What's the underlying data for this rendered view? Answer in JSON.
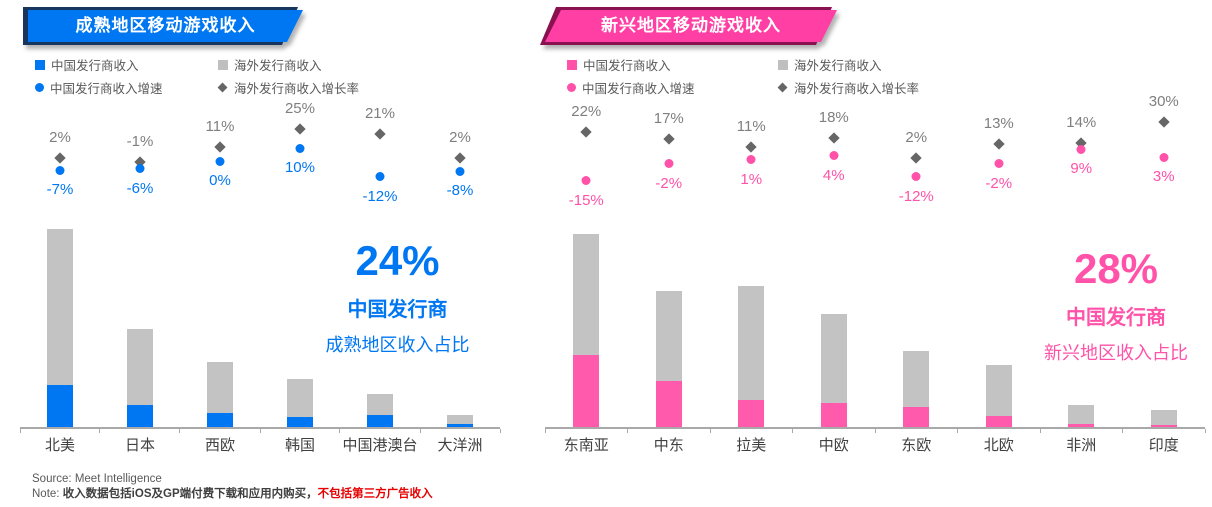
{
  "chart_data": [
    {
      "type": "bar",
      "subtype": "stacked-bar-with-growth-scatter",
      "title": "成熟地区移动游戏收入",
      "categories": [
        "北美",
        "日本",
        "西欧",
        "韩国",
        "中国港澳台",
        "大洋洲"
      ],
      "series": [
        {
          "name": "中国发行商收入",
          "role": "bar-bottom",
          "unit": "relative-height",
          "values": [
            42,
            22,
            14,
            10,
            12,
            3
          ]
        },
        {
          "name": "海外发行商收入",
          "role": "bar-top",
          "unit": "relative-height",
          "values": [
            156,
            76,
            51,
            38,
            21,
            9
          ]
        },
        {
          "name": "中国发行商收入增速",
          "role": "scatter-dot",
          "unit": "%",
          "values": [
            -7,
            -6,
            0,
            10,
            -12,
            -8
          ]
        },
        {
          "name": "海外发行商收入增长率",
          "role": "scatter-diamond",
          "unit": "%",
          "values": [
            2,
            -1,
            11,
            25,
            21,
            2
          ]
        }
      ],
      "legend": [
        {
          "marker": "square",
          "label": "中国发行商收入"
        },
        {
          "marker": "square",
          "label": "海外发行商收入"
        },
        {
          "marker": "dot",
          "label": "中国发行商收入增速"
        },
        {
          "marker": "diamond",
          "label": "海外发行商收入增长率"
        }
      ],
      "callout": {
        "value": "24%",
        "line1": "中国发行商",
        "line2": "成熟地区收入占比"
      },
      "colors": {
        "accent": "#0077F2",
        "banner": "#0077F2",
        "banner_shadow": "#17365D",
        "china_bar": "#0077F2",
        "overseas_bar": "#C3C3C4",
        "diamond": "#666666",
        "gray_label": "#7F7F7F"
      },
      "layout_hints": {
        "grid": false,
        "value_axis_hidden": true,
        "legend_position": "top-left"
      }
    },
    {
      "type": "bar",
      "subtype": "stacked-bar-with-growth-scatter",
      "title": "新兴地区移动游戏收入",
      "categories": [
        "东南亚",
        "中东",
        "拉美",
        "中欧",
        "东欧",
        "北欧",
        "非洲",
        "印度"
      ],
      "series": [
        {
          "name": "中国发行商收入",
          "role": "bar-bottom",
          "unit": "relative-height",
          "values": [
            72,
            46,
            27,
            24,
            20,
            11,
            3,
            2
          ]
        },
        {
          "name": "海外发行商收入",
          "role": "bar-top",
          "unit": "relative-height",
          "values": [
            121,
            90,
            114,
            89,
            56,
            51,
            19,
            15
          ]
        },
        {
          "name": "中国发行商收入增速",
          "role": "scatter-dot",
          "unit": "%",
          "values": [
            -15,
            -2,
            1,
            4,
            -12,
            -2,
            9,
            3
          ]
        },
        {
          "name": "海外发行商收入增长率",
          "role": "scatter-diamond",
          "unit": "%",
          "values": [
            22,
            17,
            11,
            18,
            2,
            13,
            14,
            30
          ]
        }
      ],
      "legend": [
        {
          "marker": "square",
          "label": "中国发行商收入"
        },
        {
          "marker": "square",
          "label": "海外发行商收入"
        },
        {
          "marker": "dot",
          "label": "中国发行商收入增速"
        },
        {
          "marker": "diamond",
          "label": "海外发行商收入增长率"
        }
      ],
      "callout": {
        "value": "28%",
        "line1": "中国发行商",
        "line2": "新兴地区收入占比"
      },
      "colors": {
        "accent": "#FF52A8",
        "banner": "#FF3FA4",
        "banner_shadow": "#8A1150",
        "china_bar": "#FF5AAB",
        "overseas_bar": "#C3C3C4",
        "diamond": "#666666",
        "gray_label": "#7F7F7F"
      },
      "layout_hints": {
        "grid": false,
        "value_axis_hidden": true,
        "legend_position": "top-left"
      }
    }
  ],
  "footer": {
    "source": "Source: Meet Intelligence",
    "note_prefix": "Note: ",
    "note_main": "收入数据包括iOS及GP端付费下载和应用内购买，",
    "note_red": "不包括第三方广告收入"
  }
}
